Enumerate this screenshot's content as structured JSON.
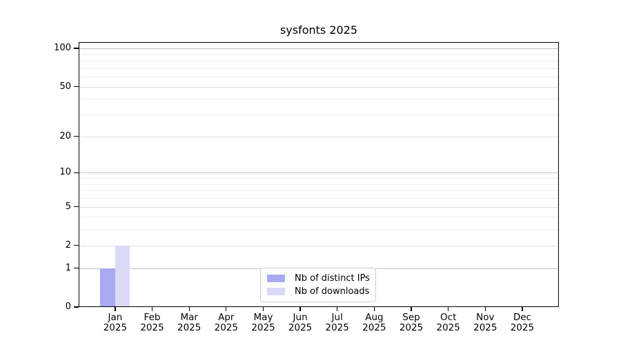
{
  "chart_data": {
    "type": "bar",
    "title": "sysfonts 2025",
    "categories": [
      "Jan",
      "Feb",
      "Mar",
      "Apr",
      "May",
      "Jun",
      "Jul",
      "Aug",
      "Sep",
      "Oct",
      "Nov",
      "Dec"
    ],
    "category_year": "2025",
    "series": [
      {
        "name": "Nb of distinct IPs",
        "color": "#a9a9f0",
        "values": [
          1,
          0,
          0,
          0,
          0,
          0,
          0,
          0,
          0,
          0,
          0,
          0
        ]
      },
      {
        "name": "Nb of downloads",
        "color": "#dadaf7",
        "values": [
          2,
          0,
          0,
          0,
          0,
          0,
          0,
          0,
          0,
          0,
          0,
          0
        ]
      }
    ],
    "xlabel": "",
    "ylabel": "",
    "yscale": "log1p",
    "ylim": [
      0,
      112
    ],
    "yticks": [
      0,
      1,
      2,
      5,
      10,
      20,
      50,
      100
    ],
    "yticks_minor": [
      3,
      4,
      6,
      7,
      8,
      9,
      30,
      40,
      60,
      70,
      80,
      90
    ],
    "grid": "horizontal",
    "grid_colors": {
      "decade": "#c2c2c2",
      "labeled": "#e1e1e1",
      "minor": "#f0f0f0"
    },
    "legend_position": "bottom-center"
  }
}
